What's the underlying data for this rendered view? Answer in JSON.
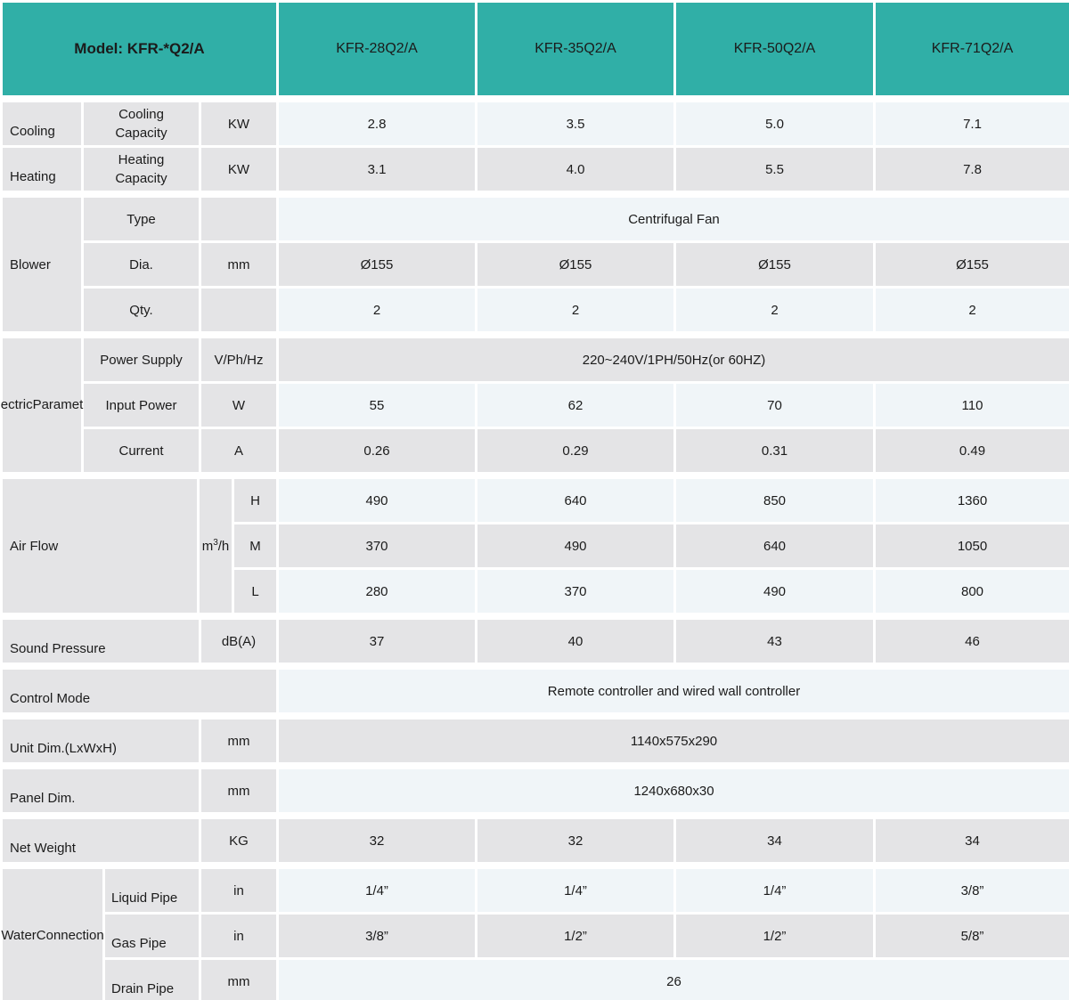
{
  "colors": {
    "accent": "#30AFA7",
    "cell_gray": "#E4E4E6",
    "cell_light": "#F0F5F8",
    "text": "#1B1B1B"
  },
  "header": {
    "model_label": "Model: KFR-*Q2/A",
    "columns": [
      "KFR-28Q2/A",
      "KFR-35Q2/A",
      "KFR-50Q2/A",
      "KFR-71Q2/A"
    ]
  },
  "cooling": {
    "label": "Cooling",
    "param": "Cooling Capacity",
    "unit": "KW",
    "values": [
      "2.8",
      "3.5",
      "5.0",
      "7.1"
    ]
  },
  "heating": {
    "label": "Heating",
    "param": "Heating Capacity",
    "unit": "KW",
    "values": [
      "3.1",
      "4.0",
      "5.5",
      "7.8"
    ]
  },
  "blower": {
    "label": "Blower",
    "type": {
      "param": "Type",
      "unit": "",
      "merged": "Centrifugal Fan"
    },
    "dia": {
      "param": "Dia.",
      "unit": "mm",
      "values": [
        "Ø155",
        "Ø155",
        "Ø155",
        "Ø155"
      ]
    },
    "qty": {
      "param": "Qty.",
      "unit": "",
      "values": [
        "2",
        "2",
        "2",
        "2"
      ]
    }
  },
  "electric": {
    "label_line1": "Electric",
    "label_line2": "Parameter",
    "power_supply": {
      "param": "Power Supply",
      "unit": "V/Ph/Hz",
      "merged": "220~240V/1PH/50Hz(or 60HZ)"
    },
    "input_power": {
      "param": "Input Power",
      "unit": "W",
      "values": [
        "55",
        "62",
        "70",
        "110"
      ]
    },
    "current": {
      "param": "Current",
      "unit": "A",
      "values": [
        "0.26",
        "0.29",
        "0.31",
        "0.49"
      ]
    }
  },
  "air_flow": {
    "label": "Air Flow",
    "unit_prefix": "m",
    "unit_sup": "3",
    "unit_suffix": "/h",
    "h": {
      "param": "H",
      "values": [
        "490",
        "640",
        "850",
        "1360"
      ]
    },
    "m": {
      "param": "M",
      "values": [
        "370",
        "490",
        "640",
        "1050"
      ]
    },
    "l": {
      "param": "L",
      "values": [
        "280",
        "370",
        "490",
        "800"
      ]
    }
  },
  "sound_pressure": {
    "label": "Sound Pressure",
    "unit": "dB(A)",
    "values": [
      "37",
      "40",
      "43",
      "46"
    ]
  },
  "control_mode": {
    "label": "Control Mode",
    "merged": "Remote controller and wired wall controller"
  },
  "unit_dim": {
    "label": "Unit Dim.(LxWxH)",
    "unit": "mm",
    "merged": "1140x575x290"
  },
  "panel_dim": {
    "label": "Panel Dim.",
    "unit": "mm",
    "merged": "1240x680x30"
  },
  "net_weight": {
    "label": "Net Weight",
    "unit": "KG",
    "values": [
      "32",
      "32",
      "34",
      "34"
    ]
  },
  "water": {
    "label_line1": "Water",
    "label_line2": "Connection",
    "liquid": {
      "param": "Liquid Pipe",
      "unit": "in",
      "values": [
        "1/4”",
        "1/4”",
        "1/4”",
        "3/8”"
      ]
    },
    "gas": {
      "param": "Gas Pipe",
      "unit": "in",
      "values": [
        "3/8”",
        "1/2”",
        "1/2”",
        "5/8”"
      ]
    },
    "drain": {
      "param": "Drain Pipe",
      "unit": "mm",
      "merged": "26"
    }
  }
}
